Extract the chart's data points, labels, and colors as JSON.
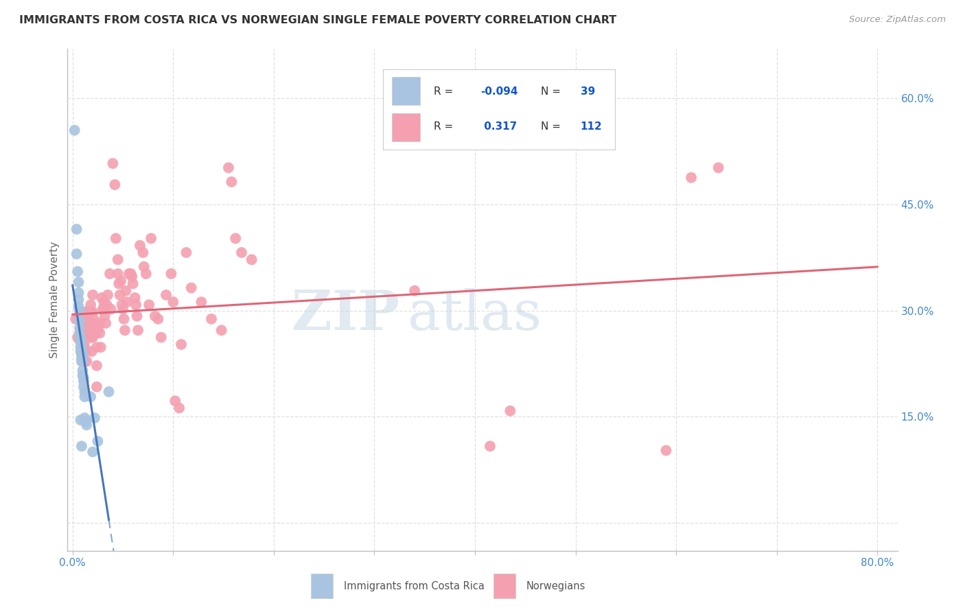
{
  "title": "IMMIGRANTS FROM COSTA RICA VS NORWEGIAN SINGLE FEMALE POVERTY CORRELATION CHART",
  "source": "Source: ZipAtlas.com",
  "ylabel": "Single Female Poverty",
  "yticks": [
    0.0,
    0.15,
    0.3,
    0.45,
    0.6
  ],
  "ytick_labels": [
    "",
    "15.0%",
    "30.0%",
    "45.0%",
    "60.0%"
  ],
  "xticks": [
    0.0,
    0.1,
    0.2,
    0.3,
    0.4,
    0.5,
    0.6,
    0.7,
    0.8
  ],
  "xlim": [
    -0.005,
    0.82
  ],
  "ylim": [
    -0.04,
    0.67
  ],
  "blue_color": "#a8c4e0",
  "pink_color": "#f4a0b0",
  "blue_line_color": "#4477bb",
  "pink_line_color": "#dd6677",
  "blue_scatter": [
    [
      0.002,
      0.555
    ],
    [
      0.004,
      0.415
    ],
    [
      0.004,
      0.38
    ],
    [
      0.005,
      0.355
    ],
    [
      0.006,
      0.34
    ],
    [
      0.006,
      0.325
    ],
    [
      0.006,
      0.315
    ],
    [
      0.006,
      0.305
    ],
    [
      0.007,
      0.3
    ],
    [
      0.007,
      0.285
    ],
    [
      0.007,
      0.275
    ],
    [
      0.007,
      0.265
    ],
    [
      0.008,
      0.26
    ],
    [
      0.008,
      0.255
    ],
    [
      0.008,
      0.248
    ],
    [
      0.008,
      0.242
    ],
    [
      0.009,
      0.245
    ],
    [
      0.009,
      0.238
    ],
    [
      0.009,
      0.232
    ],
    [
      0.009,
      0.228
    ],
    [
      0.01,
      0.238
    ],
    [
      0.01,
      0.228
    ],
    [
      0.01,
      0.215
    ],
    [
      0.01,
      0.208
    ],
    [
      0.011,
      0.205
    ],
    [
      0.011,
      0.2
    ],
    [
      0.011,
      0.192
    ],
    [
      0.012,
      0.185
    ],
    [
      0.012,
      0.178
    ],
    [
      0.012,
      0.148
    ],
    [
      0.013,
      0.143
    ],
    [
      0.014,
      0.138
    ],
    [
      0.018,
      0.178
    ],
    [
      0.02,
      0.1
    ],
    [
      0.022,
      0.148
    ],
    [
      0.025,
      0.115
    ],
    [
      0.036,
      0.185
    ],
    [
      0.008,
      0.145
    ],
    [
      0.009,
      0.108
    ]
  ],
  "pink_scatter": [
    [
      0.003,
      0.288
    ],
    [
      0.005,
      0.262
    ],
    [
      0.006,
      0.292
    ],
    [
      0.007,
      0.268
    ],
    [
      0.007,
      0.258
    ],
    [
      0.008,
      0.282
    ],
    [
      0.008,
      0.272
    ],
    [
      0.009,
      0.248
    ],
    [
      0.009,
      0.238
    ],
    [
      0.009,
      0.268
    ],
    [
      0.009,
      0.258
    ],
    [
      0.01,
      0.248
    ],
    [
      0.01,
      0.272
    ],
    [
      0.01,
      0.262
    ],
    [
      0.011,
      0.288
    ],
    [
      0.011,
      0.262
    ],
    [
      0.012,
      0.278
    ],
    [
      0.012,
      0.268
    ],
    [
      0.012,
      0.248
    ],
    [
      0.012,
      0.228
    ],
    [
      0.013,
      0.298
    ],
    [
      0.013,
      0.272
    ],
    [
      0.013,
      0.278
    ],
    [
      0.013,
      0.258
    ],
    [
      0.014,
      0.242
    ],
    [
      0.014,
      0.228
    ],
    [
      0.015,
      0.288
    ],
    [
      0.015,
      0.268
    ],
    [
      0.015,
      0.298
    ],
    [
      0.016,
      0.282
    ],
    [
      0.016,
      0.272
    ],
    [
      0.017,
      0.272
    ],
    [
      0.018,
      0.308
    ],
    [
      0.018,
      0.298
    ],
    [
      0.019,
      0.262
    ],
    [
      0.019,
      0.242
    ],
    [
      0.02,
      0.322
    ],
    [
      0.02,
      0.298
    ],
    [
      0.02,
      0.282
    ],
    [
      0.02,
      0.262
    ],
    [
      0.021,
      0.288
    ],
    [
      0.021,
      0.278
    ],
    [
      0.022,
      0.272
    ],
    [
      0.023,
      0.268
    ],
    [
      0.023,
      0.268
    ],
    [
      0.024,
      0.248
    ],
    [
      0.024,
      0.222
    ],
    [
      0.024,
      0.192
    ],
    [
      0.025,
      0.272
    ],
    [
      0.026,
      0.278
    ],
    [
      0.027,
      0.282
    ],
    [
      0.027,
      0.268
    ],
    [
      0.028,
      0.248
    ],
    [
      0.029,
      0.318
    ],
    [
      0.03,
      0.302
    ],
    [
      0.031,
      0.312
    ],
    [
      0.031,
      0.302
    ],
    [
      0.032,
      0.292
    ],
    [
      0.033,
      0.282
    ],
    [
      0.034,
      0.308
    ],
    [
      0.035,
      0.322
    ],
    [
      0.037,
      0.352
    ],
    [
      0.038,
      0.302
    ],
    [
      0.04,
      0.508
    ],
    [
      0.042,
      0.478
    ],
    [
      0.043,
      0.402
    ],
    [
      0.045,
      0.372
    ],
    [
      0.045,
      0.352
    ],
    [
      0.046,
      0.338
    ],
    [
      0.047,
      0.322
    ],
    [
      0.048,
      0.342
    ],
    [
      0.049,
      0.308
    ],
    [
      0.05,
      0.302
    ],
    [
      0.051,
      0.288
    ],
    [
      0.052,
      0.272
    ],
    [
      0.053,
      0.328
    ],
    [
      0.054,
      0.312
    ],
    [
      0.056,
      0.352
    ],
    [
      0.058,
      0.352
    ],
    [
      0.059,
      0.348
    ],
    [
      0.06,
      0.338
    ],
    [
      0.062,
      0.318
    ],
    [
      0.063,
      0.308
    ],
    [
      0.064,
      0.292
    ],
    [
      0.065,
      0.272
    ],
    [
      0.067,
      0.392
    ],
    [
      0.07,
      0.382
    ],
    [
      0.071,
      0.362
    ],
    [
      0.073,
      0.352
    ],
    [
      0.076,
      0.308
    ],
    [
      0.078,
      0.402
    ],
    [
      0.082,
      0.292
    ],
    [
      0.085,
      0.288
    ],
    [
      0.088,
      0.262
    ],
    [
      0.093,
      0.322
    ],
    [
      0.098,
      0.352
    ],
    [
      0.1,
      0.312
    ],
    [
      0.102,
      0.172
    ],
    [
      0.106,
      0.162
    ],
    [
      0.108,
      0.252
    ],
    [
      0.113,
      0.382
    ],
    [
      0.118,
      0.332
    ],
    [
      0.128,
      0.312
    ],
    [
      0.138,
      0.288
    ],
    [
      0.148,
      0.272
    ],
    [
      0.155,
      0.502
    ],
    [
      0.158,
      0.482
    ],
    [
      0.162,
      0.402
    ],
    [
      0.168,
      0.382
    ],
    [
      0.178,
      0.372
    ],
    [
      0.34,
      0.328
    ],
    [
      0.415,
      0.108
    ],
    [
      0.435,
      0.158
    ],
    [
      0.59,
      0.102
    ],
    [
      0.615,
      0.488
    ],
    [
      0.642,
      0.502
    ]
  ],
  "background_color": "#ffffff",
  "grid_color": "#e0e0e0",
  "title_color": "#333333",
  "axis_color": "#4488cc",
  "watermark_text": "ZIP",
  "watermark_text2": "atlas",
  "watermark_color1": "#c8d8e8",
  "watermark_color2": "#b8cce0"
}
